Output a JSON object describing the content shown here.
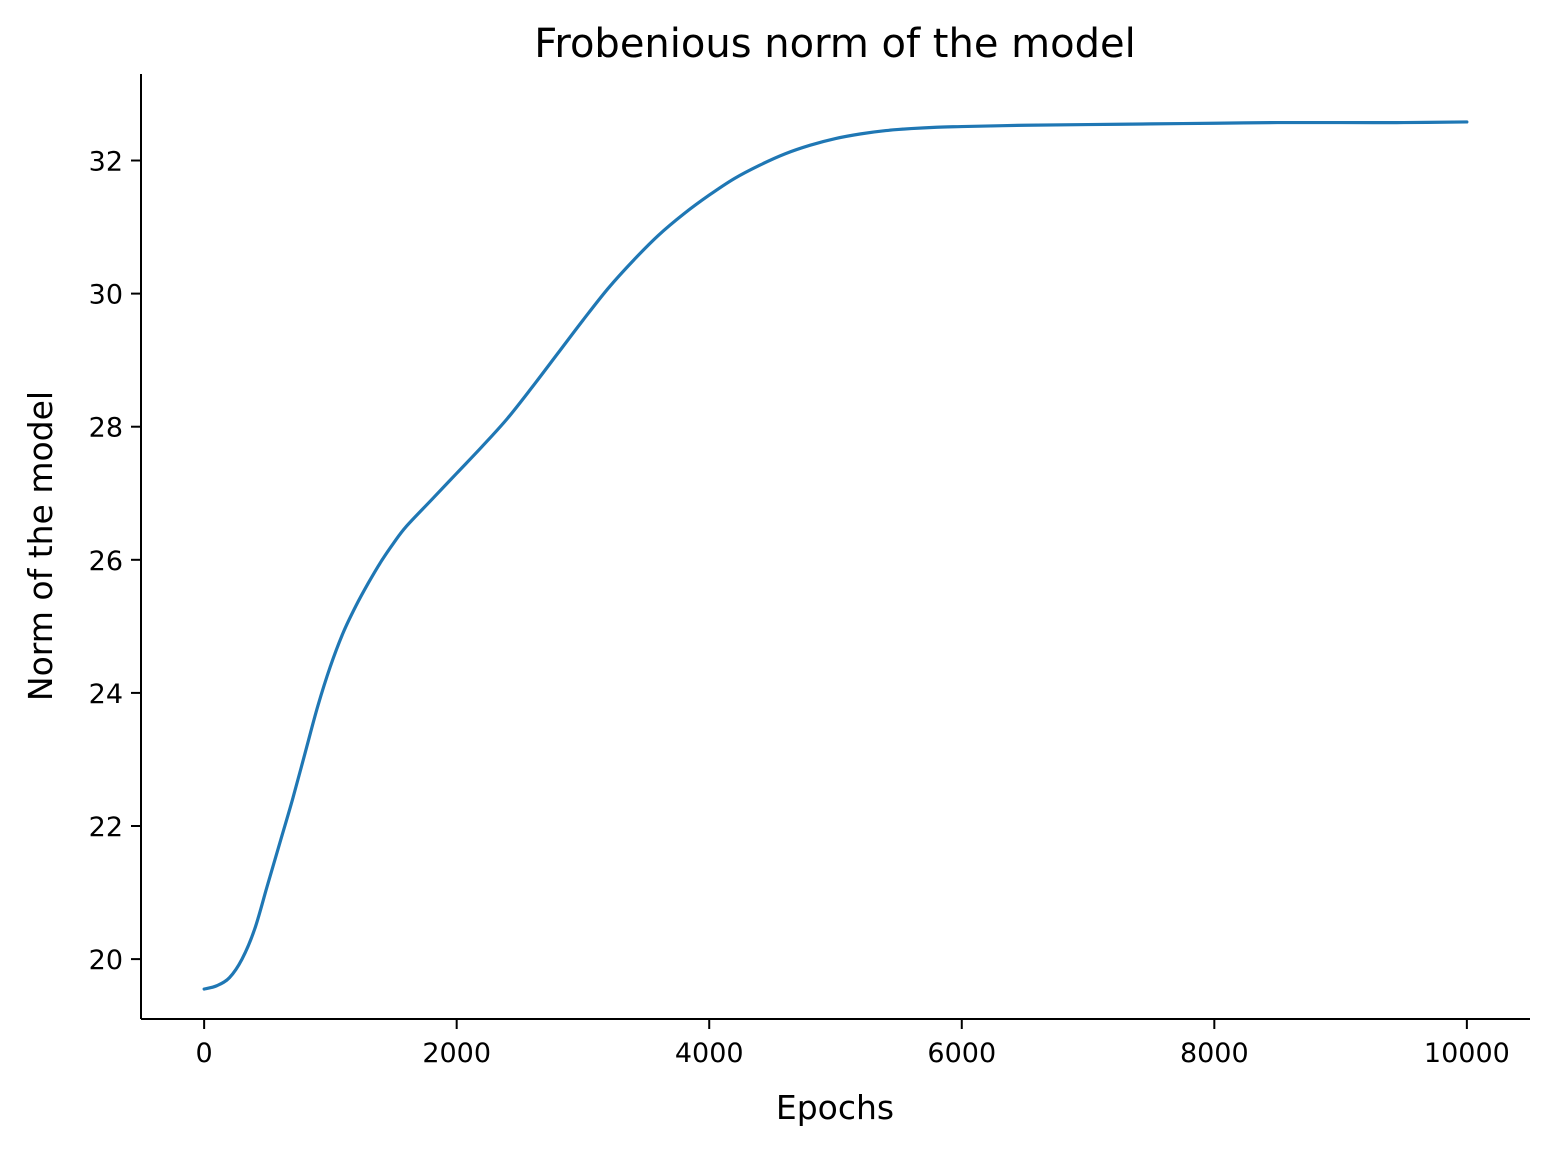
{
  "chart_data": {
    "type": "line",
    "title": "Frobenious norm of the model",
    "xlabel": "Epochs",
    "ylabel": "Norm of the model",
    "xlim": [
      -500,
      10500
    ],
    "ylim": [
      19.1,
      33.3
    ],
    "xticks": [
      0,
      2000,
      4000,
      6000,
      8000,
      10000
    ],
    "xtick_labels": [
      "0",
      "2000",
      "4000",
      "6000",
      "8000",
      "10000"
    ],
    "yticks": [
      20,
      22,
      24,
      26,
      28,
      30,
      32
    ],
    "ytick_labels": [
      "20",
      "22",
      "24",
      "26",
      "28",
      "30",
      "32"
    ],
    "grid": false,
    "legend": "none",
    "series": [
      {
        "color": "#1f77b4",
        "x": [
          0,
          100,
          200,
          300,
          400,
          500,
          600,
          700,
          800,
          900,
          1000,
          1100,
          1200,
          1300,
          1400,
          1500,
          1600,
          1800,
          2000,
          2200,
          2400,
          2600,
          2800,
          3000,
          3200,
          3400,
          3600,
          3800,
          4000,
          4200,
          4400,
          4600,
          4800,
          5000,
          5200,
          5400,
          5600,
          5800,
          6000,
          6500,
          7000,
          7500,
          8000,
          8500,
          9000,
          9500,
          10000
        ],
        "y": [
          19.55,
          19.6,
          19.72,
          20.0,
          20.45,
          21.1,
          21.75,
          22.4,
          23.1,
          23.8,
          24.4,
          24.9,
          25.3,
          25.65,
          25.97,
          26.25,
          26.5,
          26.9,
          27.3,
          27.7,
          28.12,
          28.6,
          29.1,
          29.6,
          30.08,
          30.5,
          30.88,
          31.2,
          31.48,
          31.73,
          31.93,
          32.1,
          32.23,
          32.33,
          32.4,
          32.45,
          32.48,
          32.5,
          32.51,
          32.53,
          32.54,
          32.55,
          32.56,
          32.57,
          32.57,
          32.57,
          32.58
        ]
      }
    ]
  }
}
